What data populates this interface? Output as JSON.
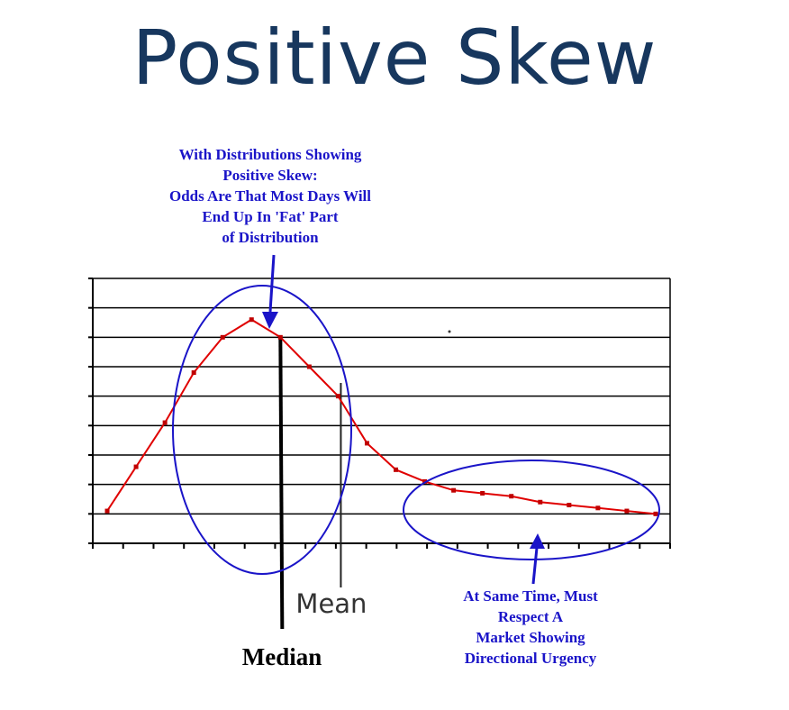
{
  "title": "Positive Skew",
  "annotations": {
    "top_note": [
      "With  Distributions Showing",
      "Positive Skew:",
      "Odds Are That Most Days Will",
      "End Up In 'Fat' Part",
      "of Distribution"
    ],
    "bottom_note": [
      "At Same Time, Must",
      "Respect A",
      "Market Showing",
      "Directional Urgency"
    ],
    "median_label": "Median",
    "mean_label": "Mean"
  },
  "colors": {
    "title": "#17375e",
    "annotation_text": "#1a14c8",
    "curve": "#e00000",
    "ellipse": "#1a14c8",
    "grid": "#000000"
  },
  "chart_data": {
    "type": "line",
    "title": "Positive Skew",
    "xlabel": "",
    "ylabel": "",
    "grid": true,
    "legend": "none",
    "x": [
      1,
      2,
      3,
      4,
      5,
      6,
      7,
      8,
      9,
      10,
      11,
      12,
      13,
      14,
      15,
      16,
      17,
      18,
      19,
      20
    ],
    "xlim": [
      0.5,
      20.5
    ],
    "ylim": [
      0,
      9
    ],
    "series": [
      {
        "values": [
          1.1,
          2.6,
          4.1,
          5.8,
          7.0,
          7.6,
          7.0,
          6.0,
          5.0,
          3.4,
          2.5,
          2.1,
          1.8,
          1.7,
          1.6,
          1.4,
          1.3,
          1.2,
          1.1,
          1.0
        ]
      }
    ],
    "markers": {
      "median_x": 7,
      "mean_x": 9
    }
  }
}
